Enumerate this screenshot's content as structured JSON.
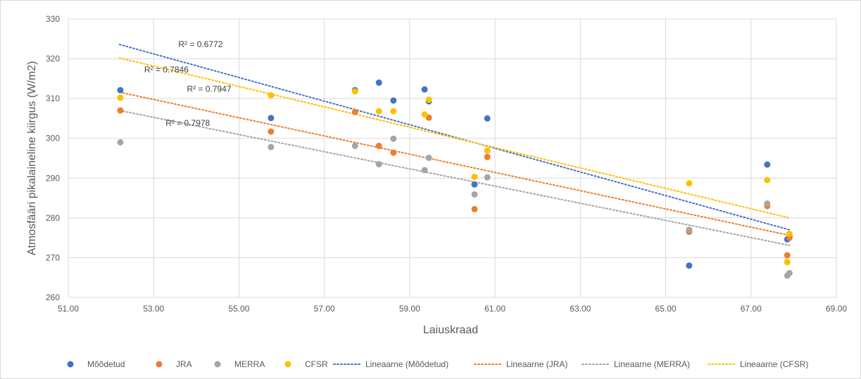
{
  "chart_data": {
    "type": "scatter",
    "title": "",
    "xlabel": "Laiuskraad",
    "ylabel": "Atmosfääri pikalaineline kiirgus (W/m2)",
    "xlim": [
      51,
      69
    ],
    "ylim": [
      260,
      330
    ],
    "x_ticks": [
      "51.00",
      "53.00",
      "55.00",
      "57.00",
      "59.00",
      "61.00",
      "63.00",
      "65.00",
      "67.00",
      "69.00"
    ],
    "y_ticks": [
      "260",
      "270",
      "280",
      "290",
      "300",
      "310",
      "320",
      "330"
    ],
    "grid": true,
    "legend_position": "bottom",
    "series": [
      {
        "name": "Mõõdetud",
        "color": "#4472c4",
        "points": [
          [
            52.22,
            312.1
          ],
          [
            55.75,
            305.1
          ],
          [
            57.72,
            312.1
          ],
          [
            58.28,
            314.0
          ],
          [
            58.62,
            309.5
          ],
          [
            59.35,
            312.3
          ],
          [
            59.45,
            309.3
          ],
          [
            60.52,
            288.4
          ],
          [
            60.82,
            305.0
          ],
          [
            65.55,
            268.0
          ],
          [
            67.38,
            293.4
          ],
          [
            67.85,
            274.6
          ],
          [
            67.9,
            275.3
          ]
        ],
        "trend": {
          "name": "Lineaarne (Mõõdetud)",
          "from": [
            52.2,
            323.6
          ],
          "to": [
            67.9,
            277.0
          ],
          "r2": "R² = 0.6772"
        }
      },
      {
        "name": "JRA",
        "color": "#ed7d31",
        "points": [
          [
            52.22,
            307.0
          ],
          [
            55.75,
            301.7
          ],
          [
            57.72,
            306.6
          ],
          [
            58.28,
            298.1
          ],
          [
            58.62,
            296.4
          ],
          [
            59.45,
            305.2
          ],
          [
            60.52,
            282.2
          ],
          [
            60.82,
            295.3
          ],
          [
            65.55,
            276.5
          ],
          [
            67.38,
            283.0
          ],
          [
            67.85,
            270.6
          ],
          [
            67.9,
            275.0
          ]
        ],
        "trend": {
          "name": "Lineaarne (JRA)",
          "from": [
            52.2,
            311.6
          ],
          "to": [
            67.9,
            275.6
          ],
          "r2": "R² = 0.7947"
        }
      },
      {
        "name": "MERRA",
        "color": "#a5a5a5",
        "points": [
          [
            52.22,
            299.0
          ],
          [
            55.75,
            297.8
          ],
          [
            57.72,
            298.1
          ],
          [
            58.28,
            293.5
          ],
          [
            58.62,
            299.9
          ],
          [
            59.35,
            292.0
          ],
          [
            59.45,
            295.1
          ],
          [
            60.52,
            285.9
          ],
          [
            60.82,
            290.2
          ],
          [
            65.55,
            277.0
          ],
          [
            67.38,
            283.6
          ],
          [
            67.85,
            265.5
          ],
          [
            67.9,
            266.1
          ]
        ],
        "trend": {
          "name": "Lineaarne (MERRA)",
          "from": [
            52.2,
            307.0
          ],
          "to": [
            67.9,
            273.1
          ],
          "r2": "R² = 0.7978"
        }
      },
      {
        "name": "CFSR",
        "color": "#ffc000",
        "points": [
          [
            52.22,
            310.2
          ],
          [
            55.75,
            310.8
          ],
          [
            57.72,
            311.8
          ],
          [
            58.28,
            306.8
          ],
          [
            58.62,
            306.8
          ],
          [
            59.35,
            306.0
          ],
          [
            59.45,
            309.7
          ],
          [
            60.52,
            290.3
          ],
          [
            60.82,
            296.9
          ],
          [
            65.55,
            288.7
          ],
          [
            67.38,
            289.5
          ],
          [
            67.85,
            268.9
          ],
          [
            67.9,
            276.0
          ]
        ],
        "trend": {
          "name": "Lineaarne (CFSR)",
          "from": [
            52.2,
            320.2
          ],
          "to": [
            67.9,
            280.0
          ],
          "r2": "R² = 0.7846"
        }
      }
    ],
    "r2_labels": [
      {
        "text": "R² = 0.6772",
        "x": 54.1,
        "y": 323.6
      },
      {
        "text": "R² = 0.7846",
        "x": 53.3,
        "y": 317.3
      },
      {
        "text": "R² = 0.7947",
        "x": 54.3,
        "y": 312.4
      },
      {
        "text": "R² = 0.7978",
        "x": 53.8,
        "y": 303.8
      }
    ]
  }
}
